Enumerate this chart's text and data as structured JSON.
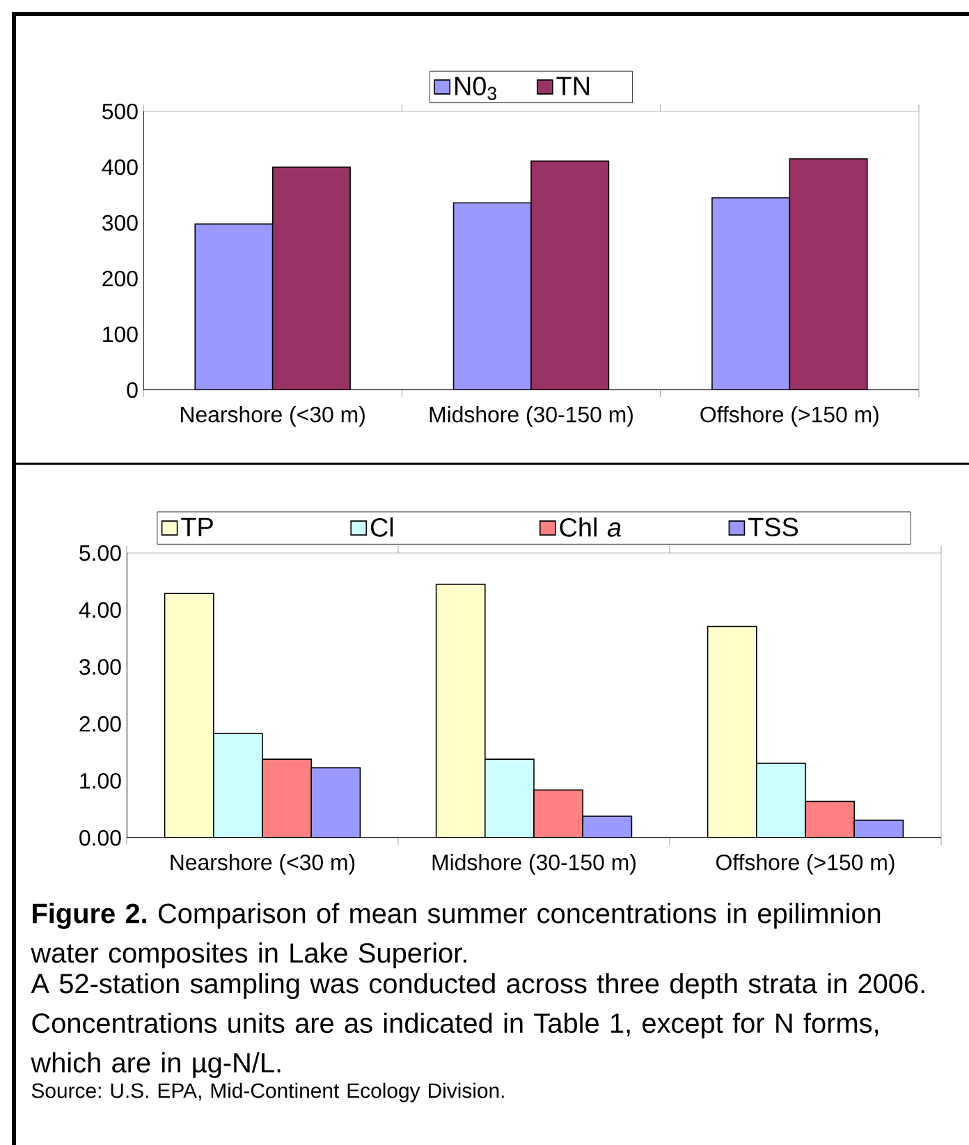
{
  "chart_data": [
    {
      "type": "bar",
      "categories": [
        "Nearshore (<30 m)",
        "Midshore (30-150 m)",
        "Offshore (>150 m)"
      ],
      "series": [
        {
          "name": "N0$_{3}$",
          "color": "#9999ff",
          "values": [
            298,
            336,
            345
          ]
        },
        {
          "name": "TN",
          "color": "#993366",
          "values": [
            400,
            411,
            415
          ]
        }
      ],
      "ylim": [
        0,
        500
      ],
      "yticks": [
        0,
        100,
        200,
        300,
        400,
        500
      ],
      "grid": false,
      "legend": "top"
    },
    {
      "type": "bar",
      "categories": [
        "Nearshore (<30 m)",
        "Midshore (30-150 m)",
        "Offshore (>150 m)"
      ],
      "series": [
        {
          "name": "TP",
          "color": "#ffffcc",
          "values": [
            4.29,
            4.45,
            3.71
          ]
        },
        {
          "name": "Cl",
          "color": "#ccffff",
          "values": [
            1.83,
            1.38,
            1.31
          ]
        },
        {
          "name": "Chl *a*",
          "color": "#ff8080",
          "values": [
            1.38,
            0.84,
            0.64
          ]
        },
        {
          "name": "TSS",
          "color": "#9999ff",
          "values": [
            1.23,
            0.38,
            0.31
          ]
        }
      ],
      "ylim": [
        0,
        5
      ],
      "yticks": [
        {
          "value": 0,
          "label": "0.00"
        },
        {
          "value": 1,
          "label": "1.00"
        },
        {
          "value": 2,
          "label": "2.00"
        },
        {
          "value": 3,
          "label": "3.00"
        },
        {
          "value": 4,
          "label": "4.00"
        },
        {
          "value": 5,
          "label": "5.00"
        }
      ],
      "grid": false,
      "legend": "top",
      "annotations": [
        "**Figure 2.** Comparison of mean summer concentrations in epilimnion water composites in Lake Superior.",
        "A 52-station sampling was conducted across three depth strata in 2006. Concentrations units are as indicated in Table 1, except for N forms, which are in µg-N/L.",
        "Source: U.S. EPA, Mid-Continent Ecology Division."
      ]
    }
  ]
}
